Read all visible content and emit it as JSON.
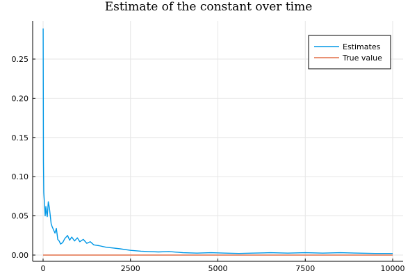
{
  "chart_data": {
    "type": "line",
    "title": "Estimate of the constant over time",
    "xlabel": "",
    "ylabel": "",
    "xlim": [
      0,
      10000
    ],
    "ylim": [
      0,
      0.29
    ],
    "xticks": [
      0,
      2500,
      5000,
      7500,
      10000
    ],
    "xtick_labels": [
      "0",
      "2500",
      "5000",
      "7500",
      "10000"
    ],
    "yticks": [
      0.0,
      0.05,
      0.1,
      0.15,
      0.2,
      0.25
    ],
    "ytick_labels": [
      "0.00",
      "0.05",
      "0.10",
      "0.15",
      "0.20",
      "0.25"
    ],
    "grid": true,
    "legend_position": "top-right",
    "series": [
      {
        "name": "Estimates",
        "color": "#0097e6",
        "x": [
          1,
          10,
          20,
          40,
          60,
          80,
          100,
          120,
          150,
          180,
          200,
          230,
          260,
          300,
          340,
          380,
          420,
          460,
          500,
          560,
          620,
          700,
          760,
          820,
          900,
          980,
          1050,
          1150,
          1250,
          1350,
          1450,
          1600,
          1800,
          2000,
          2200,
          2500,
          2800,
          3000,
          3300,
          3600,
          4000,
          4400,
          4800,
          5200,
          5600,
          6000,
          6500,
          7000,
          7500,
          8000,
          8500,
          9000,
          9500,
          10000
        ],
        "y": [
          0.289,
          0.12,
          0.08,
          0.065,
          0.05,
          0.062,
          0.054,
          0.049,
          0.068,
          0.06,
          0.052,
          0.04,
          0.036,
          0.032,
          0.028,
          0.034,
          0.02,
          0.018,
          0.014,
          0.016,
          0.021,
          0.025,
          0.019,
          0.023,
          0.018,
          0.022,
          0.017,
          0.02,
          0.015,
          0.017,
          0.013,
          0.012,
          0.01,
          0.009,
          0.008,
          0.006,
          0.005,
          0.0045,
          0.004,
          0.0045,
          0.003,
          0.0025,
          0.003,
          0.0025,
          0.002,
          0.0025,
          0.003,
          0.0025,
          0.003,
          0.0025,
          0.003,
          0.0025,
          0.002,
          0.002
        ]
      },
      {
        "name": "True value",
        "color": "#e26f46",
        "x": [
          0,
          10000
        ],
        "y": [
          0.0,
          0.0
        ]
      }
    ]
  }
}
